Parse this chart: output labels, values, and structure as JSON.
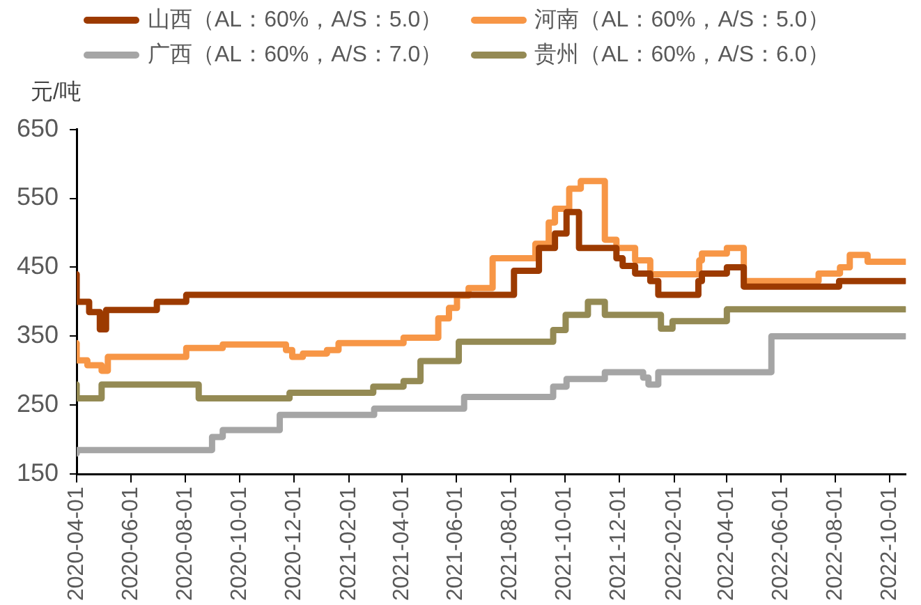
{
  "chart_data": {
    "type": "step",
    "ylabel": "元/吨",
    "ylim": [
      150,
      650
    ],
    "yticks": [
      150,
      250,
      350,
      450,
      550,
      650
    ],
    "xlim": [
      "2020-04-01",
      "2022-10-19"
    ],
    "xticks": [
      "2020-04-01",
      "2020-06-01",
      "2020-08-01",
      "2020-10-01",
      "2020-12-01",
      "2021-02-01",
      "2021-04-01",
      "2021-06-01",
      "2021-08-01",
      "2021-10-01",
      "2021-12-01",
      "2022-02-01",
      "2022-04-01",
      "2022-06-01",
      "2022-08-01",
      "2022-10-01"
    ],
    "legend": "top",
    "grid": false,
    "series": [
      {
        "name": "山西（AL：60%，A/S：5.0）",
        "color": "#9c3a00",
        "x": [
          "2020-04-01",
          "2020-04-15",
          "2020-04-27",
          "2020-05-04",
          "2020-06-30",
          "2020-08-02",
          "2021-08-05",
          "2021-09-02",
          "2021-09-20",
          "2021-10-03",
          "2021-10-17",
          "2021-11-28",
          "2021-12-05",
          "2021-12-19",
          "2022-01-05",
          "2022-01-14",
          "2022-02-28",
          "2022-03-04",
          "2022-04-01",
          "2022-04-20",
          "2022-08-05",
          "2022-09-06",
          "2022-10-18"
        ],
        "values": [
          440,
          400,
          385,
          360,
          388,
          400,
          410,
          445,
          478,
          499,
          530,
          478,
          463,
          452,
          441,
          430,
          410,
          430,
          441,
          450,
          422,
          430,
          430
        ]
      },
      {
        "name": "河南（AL：60%，A/S：5.0）",
        "color": "#f79646",
        "x": [
          "2020-04-01",
          "2020-04-13",
          "2020-04-29",
          "2020-05-06",
          "2020-08-02",
          "2020-09-12",
          "2020-11-22",
          "2020-11-29",
          "2020-12-11",
          "2021-01-07",
          "2021-01-20",
          "2021-04-03",
          "2021-05-12",
          "2021-05-24",
          "2021-06-02",
          "2021-06-15",
          "2021-07-12",
          "2021-08-29",
          "2021-09-13",
          "2021-09-20",
          "2021-10-06",
          "2021-10-19",
          "2021-11-15",
          "2021-11-28",
          "2021-12-19",
          "2022-01-05",
          "2022-03-01",
          "2022-03-04",
          "2022-04-01",
          "2022-04-20",
          "2022-07-13",
          "2022-08-06",
          "2022-08-17",
          "2022-09-06",
          "2022-10-16",
          "2022-10-18"
        ],
        "values": [
          340,
          315,
          308,
          300,
          320,
          333,
          338,
          330,
          320,
          325,
          330,
          340,
          348,
          376,
          391,
          409,
          420,
          463,
          484,
          515,
          535,
          564,
          575,
          490,
          478,
          460,
          440,
          460,
          470,
          478,
          430,
          441,
          450,
          468,
          458,
          458
        ]
      },
      {
        "name": "广西（AL：60%，A/S：7.0）",
        "color": "#a5a5a5",
        "x": [
          "2020-04-01",
          "2020-08-31",
          "2020-09-12",
          "2020-11-15",
          "2021-03-01",
          "2021-06-10",
          "2021-09-18",
          "2021-10-03",
          "2021-11-15",
          "2021-12-28",
          "2022-01-03",
          "2022-01-14",
          "2022-05-21",
          "2022-09-06",
          "2022-10-18"
        ],
        "values": [
          180,
          185,
          204,
          214,
          236,
          245,
          262,
          277,
          288,
          298,
          290,
          280,
          298,
          350,
          350
        ]
      },
      {
        "name": "贵州（AL：60%，A/S：6.0）",
        "color": "#948a54",
        "x": [
          "2020-04-01",
          "2020-04-29",
          "2020-08-16",
          "2020-11-26",
          "2021-02-28",
          "2021-04-03",
          "2021-04-22",
          "2021-06-04",
          "2021-09-18",
          "2021-10-02",
          "2021-10-27",
          "2021-11-15",
          "2022-01-17",
          "2022-01-30",
          "2022-04-01",
          "2022-05-21",
          "2022-10-18"
        ],
        "values": [
          280,
          260,
          280,
          260,
          268,
          277,
          285,
          314,
          342,
          359,
          381,
          400,
          381,
          361,
          372,
          389,
          389
        ]
      }
    ]
  }
}
